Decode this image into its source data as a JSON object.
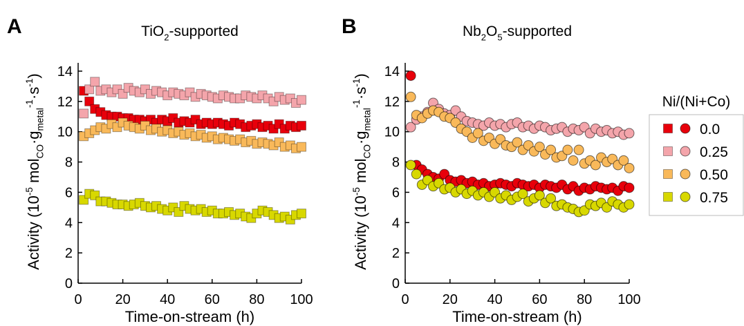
{
  "chart_data": [
    {
      "type": "scatter",
      "panel_label": "A",
      "title": [
        "TiO",
        "2",
        "-supported"
      ],
      "marker": "square",
      "xlabel": "Time-on-stream (h)",
      "ylabel": [
        "Activity (10",
        "-5",
        " mol",
        "CO",
        "·g",
        "metal",
        "-1",
        "·s",
        "-1",
        ")"
      ],
      "xlim": [
        0,
        100
      ],
      "ylim": [
        0,
        14
      ],
      "xticks": [
        0,
        20,
        40,
        60,
        80,
        100
      ],
      "yticks": [
        0,
        2,
        4,
        6,
        8,
        10,
        12,
        14
      ],
      "legend_title": "Ni/(Ni+Co)",
      "x": [
        2.5,
        5,
        7.5,
        10,
        12.5,
        15,
        17.5,
        20,
        22.5,
        25,
        27.5,
        30,
        32.5,
        35,
        37.5,
        40,
        42.5,
        45,
        47.5,
        50,
        52.5,
        55,
        57.5,
        60,
        62.5,
        65,
        67.5,
        70,
        72.5,
        75,
        77.5,
        80,
        82.5,
        85,
        87.5,
        90,
        92.5,
        95,
        97.5,
        100
      ],
      "series": [
        {
          "name": "0.0",
          "color": "#e8000b",
          "values": [
            12.7,
            12.0,
            11.5,
            11.3,
            11.1,
            11.0,
            11.0,
            10.9,
            10.9,
            10.8,
            10.8,
            10.7,
            10.8,
            10.6,
            10.8,
            10.7,
            10.9,
            10.6,
            10.7,
            10.6,
            10.8,
            10.5,
            10.6,
            10.5,
            10.6,
            10.5,
            10.4,
            10.6,
            10.5,
            10.3,
            10.4,
            10.5,
            10.3,
            10.4,
            10.2,
            10.5,
            10.2,
            10.4,
            10.3,
            10.4
          ]
        },
        {
          "name": "0.25",
          "color": "#f4a5ab",
          "values": [
            11.2,
            12.8,
            13.3,
            12.7,
            12.8,
            12.6,
            12.8,
            12.5,
            12.9,
            12.7,
            12.6,
            12.8,
            12.5,
            12.7,
            12.6,
            12.4,
            12.6,
            12.5,
            12.4,
            12.6,
            12.3,
            12.5,
            12.4,
            12.3,
            12.2,
            12.4,
            12.3,
            12.2,
            12.2,
            12.4,
            12.3,
            12.2,
            12.4,
            12.2,
            12.0,
            12.3,
            12.1,
            12.2,
            11.9,
            12.1
          ]
        },
        {
          "name": "0.50",
          "color": "#f9b95a",
          "values": [
            9.7,
            9.9,
            10.1,
            10.3,
            10.2,
            10.5,
            10.3,
            10.6,
            10.4,
            10.3,
            10.2,
            10.4,
            10.1,
            10.2,
            10.0,
            10.1,
            9.9,
            10.0,
            9.8,
            9.9,
            9.7,
            9.8,
            9.6,
            9.7,
            9.5,
            9.6,
            9.5,
            9.4,
            9.5,
            9.3,
            9.4,
            9.2,
            9.3,
            9.2,
            9.1,
            9.3,
            9.0,
            9.1,
            8.9,
            9.0
          ]
        },
        {
          "name": "0.75",
          "color": "#d8d800",
          "values": [
            5.5,
            5.9,
            5.8,
            5.4,
            5.4,
            5.3,
            5.2,
            5.2,
            5.1,
            5.2,
            5.3,
            5.1,
            5.0,
            5.1,
            4.9,
            4.8,
            5.0,
            4.7,
            5.1,
            4.9,
            4.8,
            4.9,
            4.7,
            4.8,
            4.6,
            4.6,
            4.7,
            4.5,
            4.6,
            4.4,
            4.3,
            4.6,
            4.8,
            4.7,
            4.5,
            4.3,
            4.4,
            4.2,
            4.5,
            4.6
          ]
        }
      ]
    },
    {
      "type": "scatter",
      "panel_label": "B",
      "title": [
        "Nb",
        "2",
        "O",
        "5",
        "-supported"
      ],
      "marker": "circle",
      "xlabel": "Time-on-stream (h)",
      "ylabel": [
        "Activity (10",
        "-5",
        " mol",
        "CO",
        "·g",
        "metal",
        "-1",
        "·s",
        "-1",
        ")"
      ],
      "xlim": [
        0,
        100
      ],
      "ylim": [
        0,
        14
      ],
      "xticks": [
        0,
        20,
        40,
        60,
        80,
        100
      ],
      "yticks": [
        0,
        2,
        4,
        6,
        8,
        10,
        12,
        14
      ],
      "x": [
        2.5,
        5,
        7.5,
        10,
        12.5,
        15,
        17.5,
        20,
        22.5,
        25,
        27.5,
        30,
        32.5,
        35,
        37.5,
        40,
        42.5,
        45,
        47.5,
        50,
        52.5,
        55,
        57.5,
        60,
        62.5,
        65,
        67.5,
        70,
        72.5,
        75,
        77.5,
        80,
        82.5,
        85,
        87.5,
        90,
        92.5,
        95,
        97.5,
        100
      ],
      "series": [
        {
          "color": "#e8000b",
          "values": [
            13.7,
            7.8,
            7.5,
            7.2,
            7.0,
            6.9,
            7.2,
            6.8,
            6.7,
            6.8,
            6.6,
            6.7,
            6.5,
            6.6,
            6.4,
            6.5,
            6.6,
            6.5,
            6.4,
            6.6,
            6.5,
            6.4,
            6.5,
            6.3,
            6.5,
            6.4,
            6.3,
            6.5,
            6.2,
            6.4,
            6.1,
            6.3,
            6.2,
            6.4,
            6.3,
            6.2,
            6.3,
            6.1,
            6.4,
            6.3
          ]
        },
        {
          "color": "#f4a5ab",
          "values": [
            10.3,
            10.8,
            11.0,
            11.3,
            11.9,
            11.5,
            11.2,
            11.1,
            11.4,
            11.0,
            10.7,
            10.6,
            10.5,
            10.4,
            10.6,
            10.4,
            10.5,
            10.3,
            10.5,
            10.6,
            10.3,
            10.4,
            10.2,
            10.4,
            10.3,
            10.1,
            10.2,
            10.3,
            10.0,
            10.2,
            10.1,
            10.3,
            9.9,
            10.2,
            10.0,
            10.1,
            9.9,
            10.0,
            9.8,
            9.9
          ]
        },
        {
          "color": "#f9b95a",
          "values": [
            12.3,
            11.1,
            10.9,
            11.2,
            11.4,
            11.3,
            11.0,
            10.9,
            10.6,
            10.2,
            10.0,
            9.6,
            9.9,
            9.4,
            9.6,
            9.2,
            9.5,
            9.1,
            9.0,
            9.3,
            8.8,
            9.1,
            8.7,
            9.0,
            8.5,
            8.8,
            8.3,
            8.4,
            8.8,
            8.1,
            8.8,
            7.9,
            8.1,
            7.8,
            8.3,
            8.0,
            8.2,
            7.8,
            8.1,
            7.6
          ]
        },
        {
          "color": "#d8d800",
          "values": [
            7.8,
            7.2,
            6.5,
            6.8,
            6.4,
            6.6,
            6.2,
            6.3,
            6.0,
            6.2,
            5.9,
            6.1,
            5.8,
            6.0,
            5.7,
            6.0,
            5.6,
            5.8,
            5.5,
            5.7,
            5.9,
            5.4,
            5.6,
            5.8,
            5.3,
            5.6,
            5.1,
            5.2,
            5.0,
            4.9,
            4.7,
            4.8,
            5.2,
            5.1,
            5.3,
            5.0,
            5.4,
            5.2,
            5.0,
            5.2
          ]
        }
      ]
    }
  ]
}
